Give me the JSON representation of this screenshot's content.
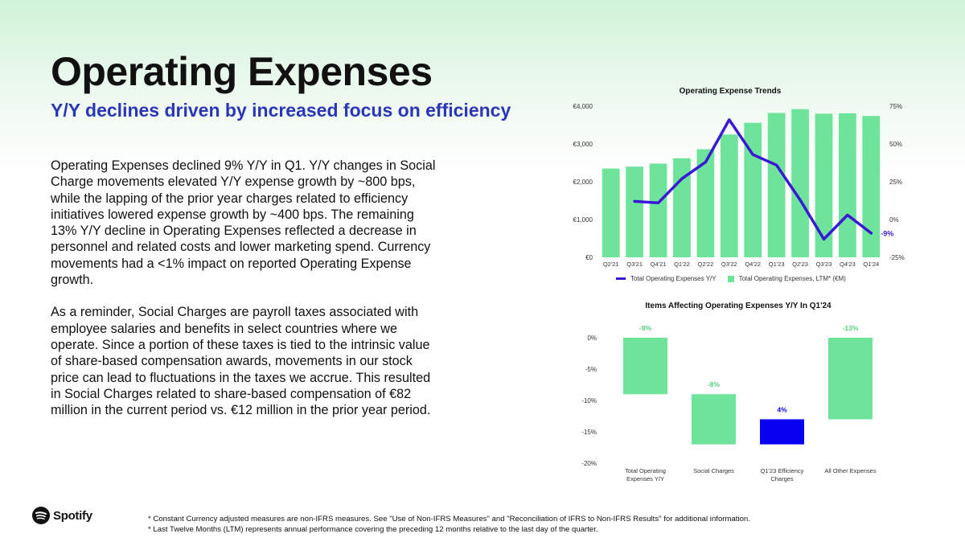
{
  "slide": {
    "title": "Operating Expenses",
    "subtitle": "Y/Y declines driven by increased focus on efficiency",
    "paragraphs": [
      "Operating Expenses declined 9% Y/Y in Q1. Y/Y changes in Social Charge movements elevated Y/Y expense growth by ~800 bps, while the lapping of the prior year charges related to efficiency initiatives lowered expense growth by ~400 bps. The remaining 13% Y/Y decline in Operating Expenses reflected a decrease in personnel and related costs and lower marketing spend. Currency movements had a <1% impact on reported Operating Expense growth.",
      "As a reminder, Social Charges are payroll taxes associated with employee salaries and benefits in select countries where we operate. Since a portion of these taxes is tied to the intrinsic value of share-based compensation awards, movements in our stock price can lead to fluctuations in the taxes we accrue. This resulted in Social Charges related to share-based compensation of €82 million in the current period vs. €12 million in the prior year period."
    ],
    "footnotes": [
      "* Constant Currency adjusted measures are non-IFRS measures. See \"Use of Non-IFRS Measures\" and \"Reconciliation of IFRS to Non-IFRS Results\" for additional information.",
      "* Last Twelve Months (LTM) represents annual performance covering the preceding 12 months relative to the last day of the quarter."
    ],
    "logo_text": "Spotify",
    "logo_icon": "spotify-logo-icon"
  },
  "colors": {
    "bar_green": "#6ee39a",
    "line_blue": "#3a18d8",
    "charge_blue": "#0a00f0",
    "subtitle_blue": "#2a36b8"
  },
  "chart_data": [
    {
      "type": "bar",
      "title": "Operating Expense Trends",
      "categories": [
        "Q2'21",
        "Q3'21",
        "Q4'21",
        "Q1'22",
        "Q2'22",
        "Q3'22",
        "Q4'22",
        "Q1'23",
        "Q2'23",
        "Q3'23",
        "Q4'23",
        "Q1'24"
      ],
      "series": [
        {
          "name": "Total Operating Expenses, LTM* (€M)",
          "type": "bar",
          "axis": "left",
          "values": [
            2350,
            2400,
            2480,
            2620,
            2860,
            3250,
            3560,
            3820,
            3920,
            3800,
            3810,
            3740
          ]
        },
        {
          "name": "Total Operating Expenses Y/Y",
          "type": "line",
          "axis": "right",
          "values": [
            null,
            12,
            11,
            27,
            38,
            66,
            43,
            36,
            13,
            -13,
            3,
            -9
          ]
        }
      ],
      "y_left": {
        "min": 0,
        "max": 4000,
        "ticks": [
          0,
          1000,
          2000,
          3000,
          4000
        ],
        "tick_labels": [
          "€0",
          "€1,000",
          "€2,000",
          "€3,000",
          "€4,000"
        ]
      },
      "y_right": {
        "min": -25,
        "max": 75,
        "ticks": [
          -25,
          0,
          25,
          50,
          75
        ],
        "tick_labels": [
          "-25%",
          "0%",
          "25%",
          "50%",
          "75%"
        ]
      },
      "end_label": "-9%",
      "legend_position": "bottom",
      "grid": false
    },
    {
      "type": "bar",
      "subtype": "waterfall",
      "title": "Items Affecting Operating Expenses Y/Y In Q1'24",
      "categories": [
        "Total Operating Expenses Y/Y",
        "Social Charges",
        "Q1'23 Efficiency Charges",
        "All Other Expenses"
      ],
      "steps": [
        {
          "label": "-9%",
          "start": 0,
          "end": -9,
          "color": "green"
        },
        {
          "label": "-8%",
          "start": -9,
          "end": -17,
          "color": "green"
        },
        {
          "label": "4%",
          "start": -17,
          "end": -13,
          "color": "blue"
        },
        {
          "label": "-13%",
          "start": 0,
          "end": -13,
          "color": "green"
        }
      ],
      "y": {
        "min": -20,
        "max": 0,
        "ticks": [
          0,
          -5,
          -10,
          -15,
          -20
        ],
        "tick_labels": [
          "0%",
          "-5%",
          "-10%",
          "-15%",
          "-20%"
        ]
      },
      "grid": false
    }
  ]
}
